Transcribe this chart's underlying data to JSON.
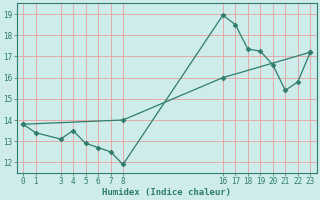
{
  "line1_x": [
    0,
    1,
    3,
    4,
    5,
    6,
    7,
    8,
    16,
    17,
    18,
    19,
    20,
    21,
    22,
    23
  ],
  "line1_y": [
    13.8,
    13.4,
    13.1,
    13.5,
    12.9,
    12.7,
    12.5,
    11.9,
    18.95,
    18.5,
    17.35,
    17.25,
    16.6,
    15.4,
    15.8,
    17.2
  ],
  "line2_x": [
    0,
    8,
    16,
    23
  ],
  "line2_y": [
    13.8,
    14.0,
    16.0,
    17.2
  ],
  "line_color": "#2e7d6e",
  "bg_color": "#ceecea",
  "grid_color": "#e8a0a0",
  "xlabel": "Humidex (Indice chaleur)",
  "xticks": [
    0,
    1,
    3,
    4,
    5,
    6,
    7,
    8,
    16,
    17,
    18,
    19,
    20,
    21,
    22,
    23
  ],
  "yticks": [
    12,
    13,
    14,
    15,
    16,
    17,
    18,
    19
  ],
  "ylim": [
    11.5,
    19.5
  ],
  "xlim": [
    -0.5,
    23.5
  ],
  "marker_size": 2.5,
  "line_width": 0.9
}
